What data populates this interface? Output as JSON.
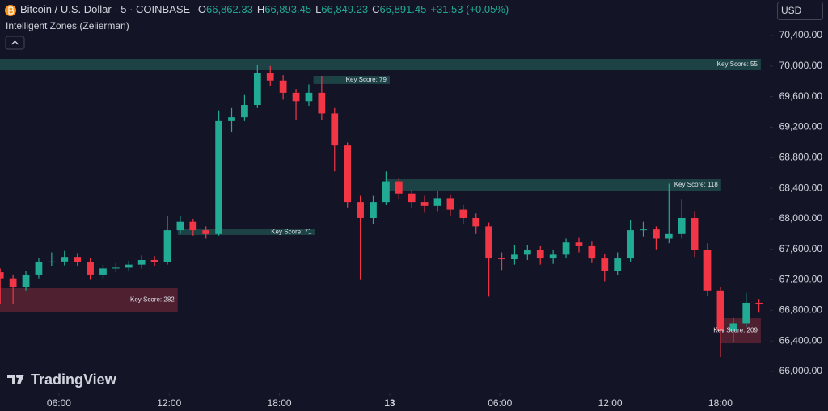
{
  "header": {
    "symbol": "Bitcoin / U.S. Dollar · 5 · COINBASE",
    "ohlc": [
      {
        "key": "O",
        "value": "66,862.33"
      },
      {
        "key": "H",
        "value": "66,893.45"
      },
      {
        "key": "L",
        "value": "66,849.23"
      },
      {
        "key": "C",
        "value": "66,891.45"
      }
    ],
    "change": "+31.53 (+0.05%)",
    "indicator": "Intelligent Zones (Zeiierman)",
    "currency": "USD",
    "logo": "TradingView"
  },
  "chart_data": {
    "type": "candlestick",
    "up_color": "#22ab94",
    "down_color": "#f23645",
    "xlim": [
      2.79,
      44.6
    ],
    "xticks": [
      {
        "value": 6,
        "label": "06:00"
      },
      {
        "value": 12,
        "label": "12:00"
      },
      {
        "value": 18,
        "label": "18:00"
      },
      {
        "value": 24,
        "label": "13"
      },
      {
        "value": 30,
        "label": "06:00"
      },
      {
        "value": 36,
        "label": "12:00"
      },
      {
        "value": 42,
        "label": "18:00"
      }
    ],
    "ylim": [
      65736,
      70865
    ],
    "yticks": [
      {
        "value": 70400,
        "label": "70,400.00"
      },
      {
        "value": 70000,
        "label": "70,000.00"
      },
      {
        "value": 69600,
        "label": "69,600.00"
      },
      {
        "value": 69200,
        "label": "69,200.00"
      },
      {
        "value": 68800,
        "label": "68,800.00"
      },
      {
        "value": 68400,
        "label": "68,400.00"
      },
      {
        "value": 68000,
        "label": "68,000.00"
      },
      {
        "value": 67600,
        "label": "67,600.00"
      },
      {
        "value": 67200,
        "label": "67,200.00"
      },
      {
        "value": 66800,
        "label": "66,800.00"
      },
      {
        "value": 66400,
        "label": "66,400.00"
      },
      {
        "value": 66000,
        "label": "66,000.00"
      }
    ],
    "x": [
      2.8,
      3.5,
      4.2,
      4.9,
      5.6,
      6.3,
      7,
      7.7,
      8.4,
      9.1,
      9.8,
      10.5,
      11.2,
      11.9,
      12.6,
      13.3,
      14,
      14.7,
      15.4,
      16.1,
      16.8,
      17.5,
      18.2,
      18.9,
      19.6,
      20.3,
      21,
      21.7,
      22.4,
      23.1,
      23.8,
      24.5,
      25.2,
      25.9,
      26.6,
      27.3,
      28,
      28.7,
      29.4,
      30.1,
      30.8,
      31.5,
      32.2,
      32.9,
      33.6,
      34.3,
      35,
      35.7,
      36.4,
      37.1,
      37.8,
      38.5,
      39.2,
      39.9,
      40.6,
      41.3,
      42,
      42.7,
      43.4,
      44.1
    ],
    "open": [
      67300,
      67220,
      67110,
      67270,
      67430,
      67440,
      67500,
      67430,
      67270,
      67350,
      67360,
      67400,
      67460,
      67430,
      67850,
      67960,
      67850,
      67800,
      69280,
      69330,
      69490,
      69910,
      69810,
      69650,
      69540,
      69650,
      69380,
      68960,
      68220,
      68010,
      68220,
      68490,
      68330,
      68220,
      68170,
      68270,
      68120,
      68010,
      67900,
      67480,
      67470,
      67530,
      67590,
      67480,
      67530,
      67690,
      67640,
      67480,
      67320,
      67480,
      67850,
      67860,
      67740,
      67800,
      68010,
      67590,
      67060,
      66530,
      66630,
      66900
    ],
    "high": [
      67350,
      67270,
      67320,
      67480,
      67560,
      67580,
      67550,
      67480,
      67400,
      67420,
      67450,
      67520,
      67510,
      68040,
      68040,
      68000,
      67900,
      69420,
      69450,
      69620,
      70020,
      70000,
      69880,
      69700,
      69760,
      69870,
      69450,
      69000,
      68300,
      68300,
      68620,
      68540,
      68380,
      68300,
      68360,
      68320,
      68180,
      68070,
      67950,
      67560,
      67660,
      67660,
      67640,
      67590,
      67740,
      67750,
      67700,
      67540,
      67560,
      67980,
      67960,
      67900,
      68460,
      68250,
      68100,
      67680,
      67100,
      66700,
      67030,
      66950
    ],
    "low": [
      66880,
      66880,
      67060,
      67220,
      67380,
      67390,
      67380,
      67200,
      67220,
      67300,
      67310,
      67350,
      67380,
      67400,
      67800,
      67780,
      67740,
      67780,
      69130,
      69280,
      69450,
      69740,
      69560,
      69300,
      69480,
      69300,
      68620,
      68150,
      67200,
      67930,
      68180,
      68260,
      68150,
      68080,
      68100,
      68040,
      67930,
      67800,
      66980,
      67330,
      67400,
      67460,
      67400,
      67410,
      67480,
      67560,
      67420,
      67180,
      67260,
      67440,
      67770,
      67600,
      67680,
      67740,
      67500,
      66990,
      66190,
      66380,
      66580,
      66770
    ],
    "close": [
      67220,
      67110,
      67270,
      67430,
      67440,
      67500,
      67430,
      67270,
      67350,
      67360,
      67400,
      67460,
      67430,
      67850,
      67960,
      67850,
      67800,
      69280,
      69330,
      69490,
      69910,
      69810,
      69650,
      69540,
      69650,
      69380,
      68960,
      68220,
      68010,
      68220,
      68490,
      68330,
      68220,
      68170,
      68270,
      68120,
      68010,
      67900,
      67480,
      67470,
      67530,
      67590,
      67480,
      67530,
      67690,
      67640,
      67480,
      67320,
      67480,
      67850,
      67860,
      67740,
      67800,
      68010,
      67590,
      67060,
      66530,
      66630,
      66900,
      66890
    ],
    "zones": [
      {
        "label": "Key Score: 55",
        "range": [
          69945,
          70093
        ],
        "x": [
          2.79,
          44.2
        ],
        "color": "#1e4a4b"
      },
      {
        "label": "Key Score: 79",
        "range": [
          69766,
          69871
        ],
        "x": [
          19.85,
          24.0
        ],
        "color": "#1e4a4b"
      },
      {
        "label": "Key Score: 71",
        "range": [
          67788,
          67862
        ],
        "x": [
          12.46,
          19.93
        ],
        "color": "#1e4a4b"
      },
      {
        "label": "Key Score: 118",
        "range": [
          68369,
          68517
        ],
        "x": [
          23.8,
          42.04
        ],
        "color": "#1e4a4b"
      },
      {
        "label": "Key Score: 282",
        "range": [
          66783,
          67090
        ],
        "x": [
          2.79,
          12.46
        ],
        "color": "#5a2232"
      },
      {
        "label": "Key Score: 209",
        "range": [
          66370,
          66698
        ],
        "x": [
          42.04,
          44.2
        ],
        "color": "#5a2232"
      }
    ]
  }
}
